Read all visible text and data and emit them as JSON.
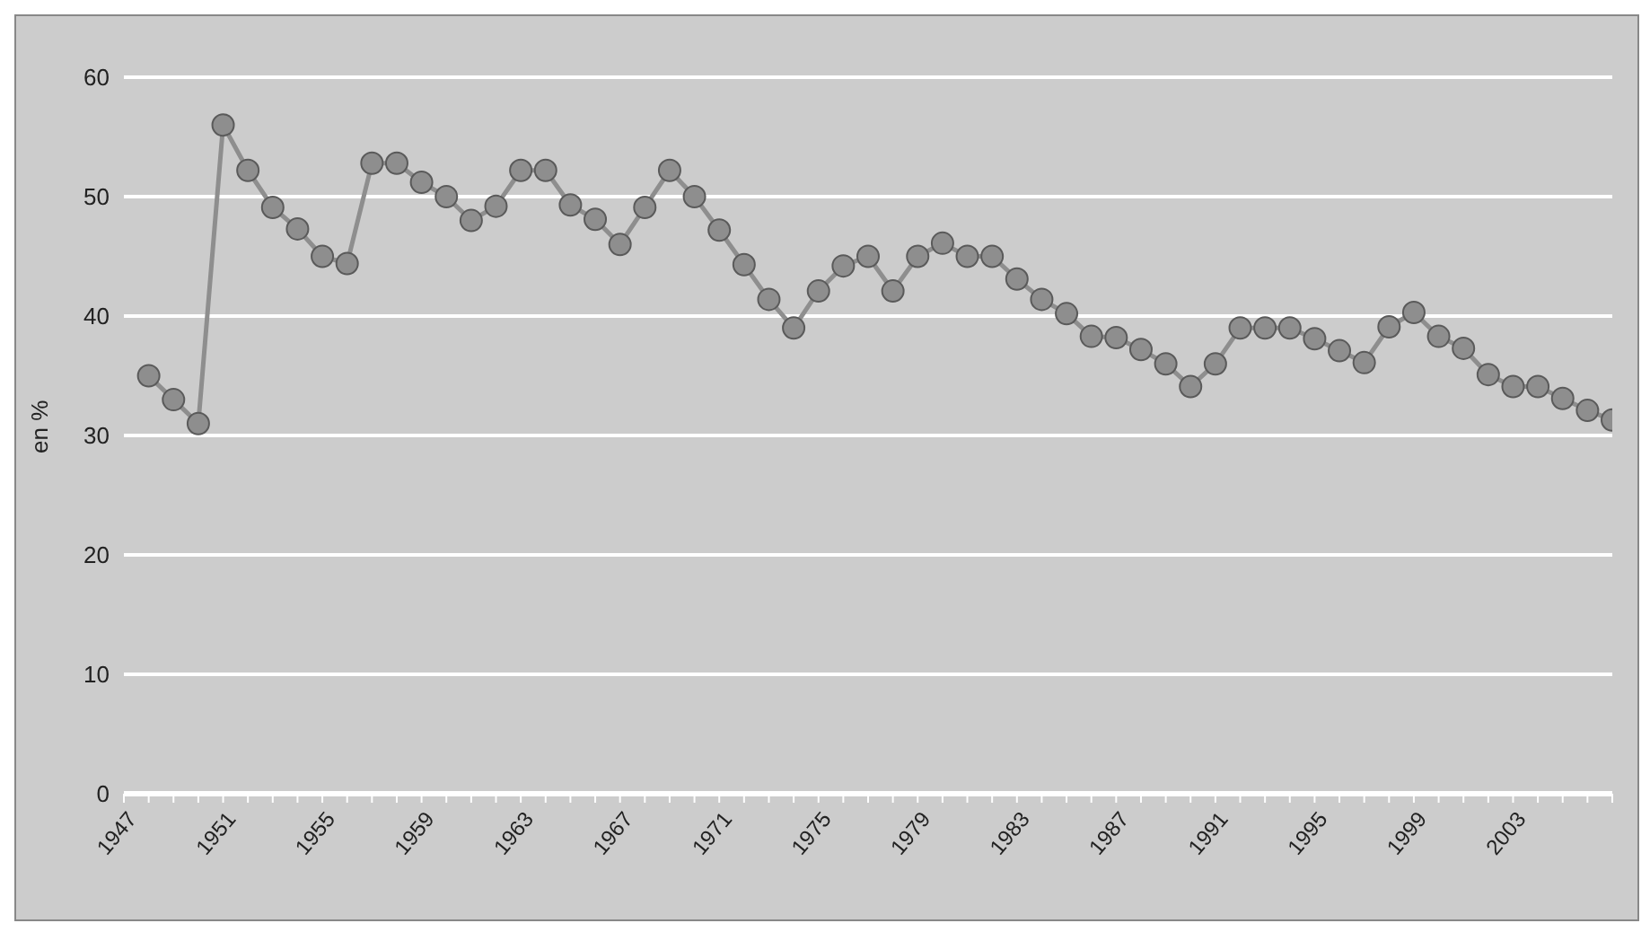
{
  "chart_data": {
    "type": "line",
    "ylabel": "en %",
    "x": [
      1948,
      1949,
      1950,
      1951,
      1952,
      1953,
      1954,
      1955,
      1956,
      1957,
      1958,
      1959,
      1960,
      1961,
      1962,
      1963,
      1964,
      1965,
      1966,
      1967,
      1968,
      1969,
      1970,
      1971,
      1972,
      1973,
      1974,
      1975,
      1976,
      1977,
      1978,
      1979,
      1980,
      1981,
      1982,
      1983,
      1984,
      1985,
      1986,
      1987,
      1988,
      1989,
      1990,
      1991,
      1992,
      1993,
      1994,
      1995,
      1996,
      1997,
      1998,
      1999,
      2000,
      2001,
      2002,
      2003,
      2004,
      2005,
      2006,
      2007
    ],
    "series": [
      {
        "color": "#8e8e8e",
        "values": [
          35,
          33,
          31,
          56,
          52.2,
          49.1,
          47.3,
          45,
          44.4,
          52.8,
          52.8,
          51.2,
          50,
          48,
          49.2,
          52.2,
          52.2,
          49.3,
          48.1,
          46,
          49.1,
          52.2,
          50,
          47.2,
          44.3,
          41.4,
          39,
          42.1,
          44.2,
          45,
          42.1,
          45,
          46.1,
          45,
          45,
          43.1,
          41.4,
          40.2,
          38.3,
          38.2,
          37.2,
          36,
          34.1,
          36,
          39,
          39,
          39,
          38.1,
          37.1,
          36.1,
          39.1,
          40.3,
          38.3,
          37.3,
          35.1,
          34.1,
          34.1,
          33.1,
          32.1,
          31.3
        ]
      }
    ],
    "xlim": [
      1947,
      2007
    ],
    "xticks": [
      1947,
      {
        "value": 1948,
        "label": null
      },
      {
        "value": 1949,
        "label": null
      },
      {
        "value": 1950,
        "label": null
      },
      1951,
      {
        "value": 1952,
        "label": null
      },
      {
        "value": 1953,
        "label": null
      },
      {
        "value": 1954,
        "label": null
      },
      1955,
      {
        "value": 1956,
        "label": null
      },
      {
        "value": 1957,
        "label": null
      },
      {
        "value": 1958,
        "label": null
      },
      1959,
      {
        "value": 1960,
        "label": null
      },
      {
        "value": 1961,
        "label": null
      },
      {
        "value": 1962,
        "label": null
      },
      1963,
      {
        "value": 1964,
        "label": null
      },
      {
        "value": 1965,
        "label": null
      },
      {
        "value": 1966,
        "label": null
      },
      1967,
      {
        "value": 1968,
        "label": null
      },
      {
        "value": 1969,
        "label": null
      },
      {
        "value": 1970,
        "label": null
      },
      1971,
      {
        "value": 1972,
        "label": null
      },
      {
        "value": 1973,
        "label": null
      },
      {
        "value": 1974,
        "label": null
      },
      1975,
      {
        "value": 1976,
        "label": null
      },
      {
        "value": 1977,
        "label": null
      },
      {
        "value": 1978,
        "label": null
      },
      1979,
      {
        "value": 1980,
        "label": null
      },
      {
        "value": 1981,
        "label": null
      },
      {
        "value": 1982,
        "label": null
      },
      1983,
      {
        "value": 1984,
        "label": null
      },
      {
        "value": 1985,
        "label": null
      },
      {
        "value": 1986,
        "label": null
      },
      1987,
      {
        "value": 1988,
        "label": null
      },
      {
        "value": 1989,
        "label": null
      },
      {
        "value": 1990,
        "label": null
      },
      1991,
      {
        "value": 1992,
        "label": null
      },
      {
        "value": 1993,
        "label": null
      },
      {
        "value": 1994,
        "label": null
      },
      1995,
      {
        "value": 1996,
        "label": null
      },
      {
        "value": 1997,
        "label": null
      },
      {
        "value": 1998,
        "label": null
      },
      1999,
      {
        "value": 2000,
        "label": null
      },
      {
        "value": 2001,
        "label": null
      },
      {
        "value": 2002,
        "label": null
      },
      2003,
      {
        "value": 2004,
        "label": null
      },
      {
        "value": 2005,
        "label": null
      },
      {
        "value": 2006,
        "label": null
      },
      {
        "value": 2007,
        "label": null
      }
    ],
    "ylim": [
      0,
      60
    ],
    "yticks": [
      0,
      10,
      20,
      30,
      40,
      50,
      60
    ],
    "grid": "y",
    "marker": "circle",
    "line_style": "solid",
    "legend": false
  }
}
